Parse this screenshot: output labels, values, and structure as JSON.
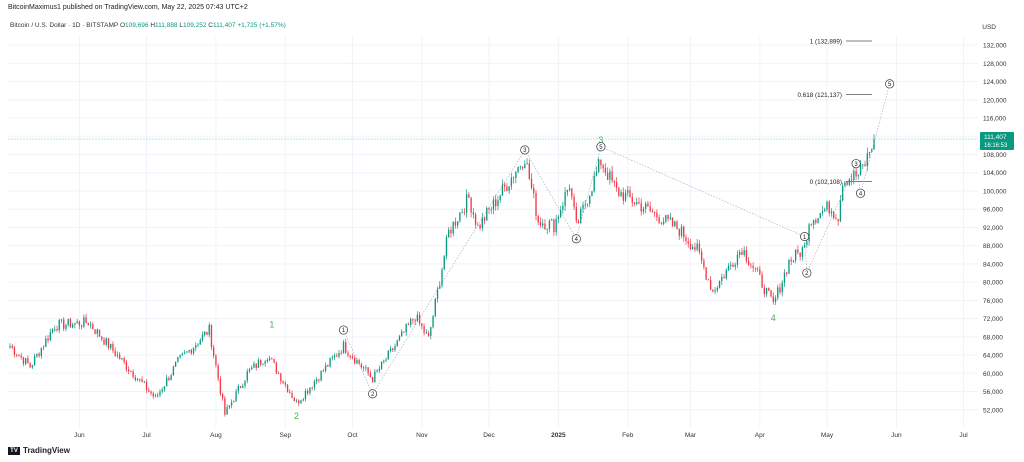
{
  "header": {
    "publisher": "BitcoinMaximus1 published on TradingView.com, May 22, 2025 07:43 UTC+2",
    "symbol": "Bitcoin / U.S. Dollar · 1D · BITSTAMP",
    "o_label": "O",
    "o": "109,696",
    "h_label": "H",
    "h": "111,888",
    "l_label": "L",
    "l": "109,252",
    "c_label": "C",
    "c": "111,407",
    "change": "+1,725 (+1.57%)",
    "currency": "USD"
  },
  "footer": {
    "brand": "TradingView"
  },
  "chart_data": {
    "type": "candlestick",
    "ylim": [
      48000,
      134000
    ],
    "y_ticks": [
      52000,
      56000,
      60000,
      64000,
      68000,
      72000,
      76000,
      80000,
      84000,
      88000,
      92000,
      96000,
      100000,
      104000,
      108000,
      112000,
      116000,
      120000,
      124000,
      128000,
      132000
    ],
    "y_tick_labels": [
      "52,000",
      "56,000",
      "60,000",
      "64,000",
      "68,000",
      "72,000",
      "76,000",
      "80,000",
      "84,000",
      "88,000",
      "92,000",
      "96,000",
      "100,000",
      "104,000",
      "108,000",
      "112,000",
      "116,000",
      "120,000",
      "124,000",
      "128,000",
      "132,000"
    ],
    "x_tick_labels": [
      {
        "label": "Jun",
        "date": "2024-06-01"
      },
      {
        "label": "Jul",
        "date": "2024-07-01"
      },
      {
        "label": "Aug",
        "date": "2024-08-01"
      },
      {
        "label": "Sep",
        "date": "2024-09-01"
      },
      {
        "label": "Oct",
        "date": "2024-10-01"
      },
      {
        "label": "Nov",
        "date": "2024-11-01"
      },
      {
        "label": "Dec",
        "date": "2024-12-01"
      },
      {
        "label": "2025",
        "date": "2025-01-01"
      },
      {
        "label": "Feb",
        "date": "2025-02-01"
      },
      {
        "label": "Mar",
        "date": "2025-03-01"
      },
      {
        "label": "Apr",
        "date": "2025-04-01"
      },
      {
        "label": "May",
        "date": "2025-05-01"
      },
      {
        "label": "Jun",
        "date": "2025-06-01"
      },
      {
        "label": "Jul",
        "date": "2025-07-01"
      }
    ],
    "first_date": "2024-05-01",
    "last_date": "2025-05-22",
    "current_price": {
      "value": 111407,
      "label": "111,407",
      "countdown": "16:16:53"
    },
    "price_keypoints": [
      [
        "2024-05-01",
        66000
      ],
      [
        "2024-05-10",
        61500
      ],
      [
        "2024-05-21",
        70500
      ],
      [
        "2024-06-05",
        71200
      ],
      [
        "2024-06-24",
        60500
      ],
      [
        "2024-07-05",
        54500
      ],
      [
        "2024-07-15",
        62500
      ],
      [
        "2024-07-29",
        69500
      ],
      [
        "2024-08-05",
        51000
      ],
      [
        "2024-08-15",
        60000
      ],
      [
        "2024-08-24",
        64000
      ],
      [
        "2024-09-06",
        53500
      ],
      [
        "2024-09-27",
        66000
      ],
      [
        "2024-10-10",
        58800
      ],
      [
        "2024-10-29",
        72500
      ],
      [
        "2024-11-04",
        67500
      ],
      [
        "2024-11-13",
        91000
      ],
      [
        "2024-11-22",
        98500
      ],
      [
        "2024-11-26",
        92000
      ],
      [
        "2024-12-05",
        98500
      ],
      [
        "2024-12-17",
        107500
      ],
      [
        "2024-12-23",
        93500
      ],
      [
        "2024-12-30",
        92500
      ],
      [
        "2025-01-06",
        101500
      ],
      [
        "2025-01-09",
        92000
      ],
      [
        "2025-01-20",
        106500
      ],
      [
        "2025-01-27",
        100000
      ],
      [
        "2025-02-03",
        98000
      ],
      [
        "2025-02-24",
        91500
      ],
      [
        "2025-03-04",
        87000
      ],
      [
        "2025-03-11",
        78000
      ],
      [
        "2025-03-24",
        87500
      ],
      [
        "2025-03-30",
        82500
      ],
      [
        "2025-04-07",
        75000
      ],
      [
        "2025-04-14",
        84500
      ],
      [
        "2025-04-21",
        87500
      ],
      [
        "2025-04-23",
        93500
      ],
      [
        "2025-05-02",
        96500
      ],
      [
        "2025-05-06",
        94500
      ],
      [
        "2025-05-08",
        102500
      ],
      [
        "2025-05-15",
        103500
      ],
      [
        "2025-05-18",
        106000
      ],
      [
        "2025-05-22",
        111407
      ]
    ],
    "wave_labels": [
      {
        "label": "1",
        "date": "2024-08-26",
        "price": 70000,
        "style": "green"
      },
      {
        "label": "2",
        "date": "2024-09-06",
        "price": 50000,
        "style": "green"
      },
      {
        "label": "3",
        "date": "2025-01-20",
        "price": 110500,
        "style": "green"
      },
      {
        "label": "4",
        "date": "2025-04-07",
        "price": 71500,
        "style": "green"
      },
      {
        "label": "1",
        "date": "2024-09-27",
        "price": 69500,
        "style": "circle"
      },
      {
        "label": "2",
        "date": "2024-10-10",
        "price": 55500,
        "style": "circle"
      },
      {
        "label": "3",
        "date": "2024-12-17",
        "price": 109000,
        "style": "circle"
      },
      {
        "label": "4",
        "date": "2025-01-09",
        "price": 89500,
        "style": "circle"
      },
      {
        "label": "5",
        "date": "2025-01-20",
        "price": 109700,
        "style": "circle"
      },
      {
        "label": "1",
        "date": "2025-04-21",
        "price": 90000,
        "style": "circle"
      },
      {
        "label": "2",
        "date": "2025-04-22",
        "price": 82000,
        "style": "circle"
      },
      {
        "label": "3",
        "date": "2025-05-14",
        "price": 106000,
        "style": "circle"
      },
      {
        "label": "4",
        "date": "2025-05-16",
        "price": 99500,
        "style": "circle"
      },
      {
        "label": "5",
        "date": "2025-05-29",
        "price": 123500,
        "style": "circle"
      }
    ],
    "fib_levels": [
      {
        "label": "1 (132,899)",
        "value": 132899
      },
      {
        "label": "0.618 (121,137)",
        "value": 121137
      },
      {
        "label": "0 (102,108)",
        "value": 102108
      }
    ],
    "colors": {
      "up": "#089981",
      "down": "#f23645",
      "wave_green": "#4caf50",
      "grid": "#f0f3fa",
      "current_line": "#a3dccb",
      "axis_text": "#333333"
    }
  }
}
